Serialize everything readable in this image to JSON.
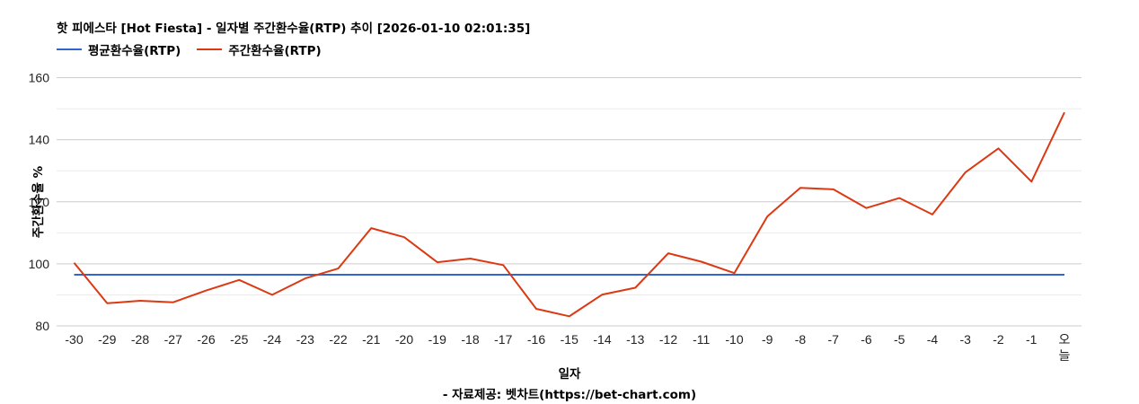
{
  "header": {
    "title": "핫 피에스타 [Hot Fiesta] - 일자별 주간환수율(RTP) 추이 [2026-01-10 02:01:35]"
  },
  "legend": {
    "items": [
      {
        "label": "평균환수율(RTP)",
        "color": "#3366cc"
      },
      {
        "label": "주간환수율(RTP)",
        "color": "#dc3912"
      }
    ]
  },
  "axes": {
    "xlabel": "일자",
    "ylabel": "주간환수율 %"
  },
  "footer": {
    "source": "- 자료제공: 벳차트(https://bet-chart.com)"
  },
  "chart_data": {
    "type": "line",
    "title": "핫 피에스타 [Hot Fiesta] - 일자별 주간환수율(RTP) 추이 [2026-01-10 02:01:35]",
    "xlabel": "일자",
    "ylabel": "주간환수율 %",
    "ylim": [
      80,
      160
    ],
    "yticks": [
      80,
      100,
      120,
      140,
      160
    ],
    "grid": true,
    "legend_position": "top",
    "categories": [
      "-30",
      "-29",
      "-28",
      "-27",
      "-26",
      "-25",
      "-24",
      "-23",
      "-22",
      "-21",
      "-20",
      "-19",
      "-18",
      "-17",
      "-16",
      "-15",
      "-14",
      "-13",
      "-12",
      "-11",
      "-10",
      "-9",
      "-8",
      "-7",
      "-6",
      "-5",
      "-4",
      "-3",
      "-2",
      "-1",
      "오늘"
    ],
    "series": [
      {
        "name": "평균환수율(RTP)",
        "color": "#3366cc",
        "values": [
          96.5,
          96.5,
          96.5,
          96.5,
          96.5,
          96.5,
          96.5,
          96.5,
          96.5,
          96.5,
          96.5,
          96.5,
          96.5,
          96.5,
          96.5,
          96.5,
          96.5,
          96.5,
          96.5,
          96.5,
          96.5,
          96.5,
          96.5,
          96.5,
          96.5,
          96.5,
          96.5,
          96.5,
          96.5,
          96.5,
          96.5
        ]
      },
      {
        "name": "주간환수율(RTP)",
        "color": "#dc3912",
        "values": [
          100.3,
          87.3,
          88.1,
          87.6,
          91.4,
          94.8,
          90.0,
          95.3,
          98.5,
          111.5,
          108.6,
          100.5,
          101.7,
          99.6,
          85.5,
          83.1,
          90.1,
          92.3,
          103.4,
          100.7,
          97.0,
          115.3,
          124.5,
          124.0,
          118.0,
          121.2,
          115.9,
          129.5,
          137.2,
          126.5,
          148.8
        ]
      }
    ]
  }
}
